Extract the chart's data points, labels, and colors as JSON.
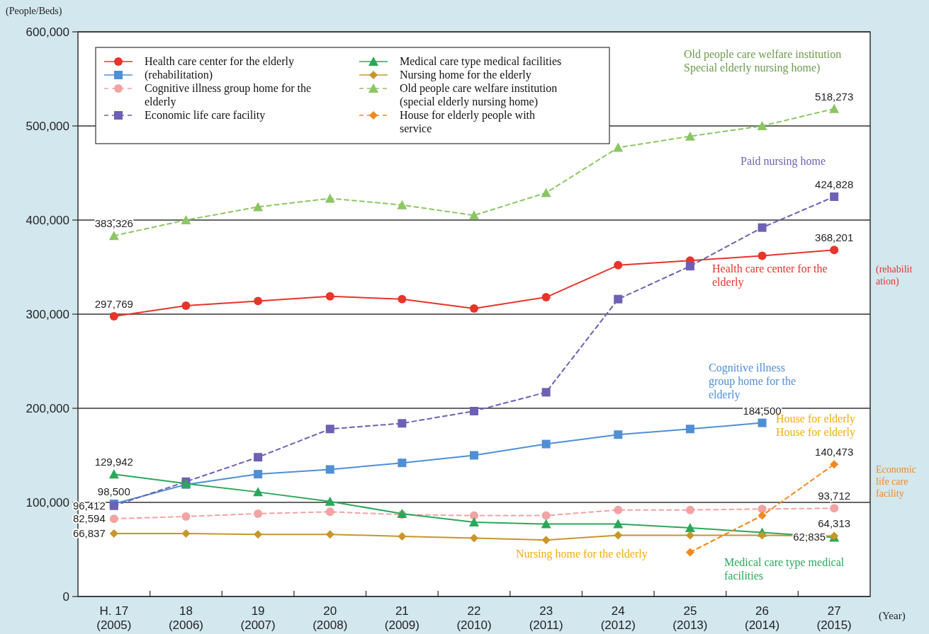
{
  "chart_data": {
    "type": "line",
    "ylabel": "(People/Beds)",
    "xlabel": "(Year)",
    "categories": [
      "H. 17\n(2005)",
      "18\n(2006)",
      "19\n(2007)",
      "20\n(2008)",
      "21\n(2009)",
      "22\n(2010)",
      "23\n(2011)",
      "24\n(2012)",
      "25\n(2013)",
      "26\n(2014)",
      "27\n(2015)"
    ],
    "ylim": [
      0,
      600000
    ],
    "yticks": [
      {
        "value": 0,
        "label": "0"
      },
      {
        "value": 100000,
        "label": "100,000"
      },
      {
        "value": 200000,
        "label": "200,000"
      },
      {
        "value": 300000,
        "label": "300,000"
      },
      {
        "value": 400000,
        "label": "400,000"
      },
      {
        "value": 500000,
        "label": "500,000"
      },
      {
        "value": 600000,
        "label": "600,000"
      }
    ],
    "grid": "y",
    "legend": "top left",
    "series": [
      {
        "name": "Health care center for the elderly",
        "color": "#e8342a",
        "marker": "circle",
        "line_style": "solid",
        "values": [
          297769,
          309000,
          314000,
          319000,
          316000,
          306000,
          318000,
          352000,
          357000,
          362000,
          368201
        ],
        "value_labels": [
          "297,769",
          null,
          null,
          null,
          null,
          null,
          null,
          null,
          null,
          null,
          "368,201"
        ]
      },
      {
        "name": "(rehabilitation)",
        "color": "#4f8fd6",
        "marker": "square",
        "line_style": "solid",
        "values": [
          98500,
          119000,
          130000,
          135000,
          142000,
          150000,
          162000,
          172000,
          178000,
          184500,
          null
        ],
        "value_labels": [
          "98,500",
          null,
          null,
          null,
          null,
          null,
          null,
          null,
          null,
          "184,500",
          null
        ]
      },
      {
        "name": "Cognitive illness group home for the elderly",
        "color": "#f2a3a3",
        "marker": "circle",
        "line_style": "dashed",
        "values": [
          82594,
          85000,
          88000,
          90000,
          87000,
          86000,
          86000,
          92000,
          92000,
          93000,
          93712
        ],
        "value_labels": [
          "82,594",
          null,
          null,
          null,
          null,
          null,
          null,
          null,
          null,
          null,
          "93,712"
        ]
      },
      {
        "name": "Economic life care facility",
        "color": "#6f5fb5",
        "marker": "square",
        "line_style": "dashed",
        "values": [
          96412,
          122000,
          148000,
          178000,
          184000,
          197000,
          217000,
          316000,
          351000,
          392000,
          424828
        ],
        "value_labels": [
          "96,412",
          null,
          null,
          null,
          null,
          null,
          null,
          null,
          null,
          null,
          "424,828"
        ]
      },
      {
        "name": "Medical care type medical facilities",
        "color": "#2aa85a",
        "marker": "triangle",
        "line_style": "solid",
        "values": [
          129942,
          120000,
          111000,
          101000,
          88000,
          79000,
          77000,
          77000,
          73000,
          68000,
          62835
        ],
        "value_labels": [
          "129,942",
          null,
          null,
          null,
          null,
          null,
          null,
          null,
          null,
          null,
          "62,835"
        ]
      },
      {
        "name": "Nursing home for the elderly",
        "color": "#c8962a",
        "marker": "diamond",
        "line_style": "solid",
        "values": [
          66837,
          67000,
          66000,
          66000,
          64000,
          62000,
          60000,
          65000,
          65000,
          65000,
          64313
        ],
        "value_labels": [
          "66,837",
          null,
          null,
          null,
          null,
          null,
          null,
          null,
          null,
          null,
          "64,313"
        ]
      },
      {
        "name": "Old people care welfare institution (special elderly nursing home)",
        "color": "#8cc664",
        "marker": "triangle",
        "line_style": "dashed",
        "values": [
          383326,
          400000,
          414000,
          423000,
          416000,
          405000,
          429000,
          477000,
          489000,
          500000,
          518273
        ],
        "value_labels": [
          "383,326",
          null,
          null,
          null,
          null,
          null,
          null,
          null,
          null,
          null,
          "518,273"
        ]
      },
      {
        "name": "House for elderly people with service",
        "color": "#f08a1e",
        "marker": "diamond",
        "line_style": "dashed",
        "values": [
          null,
          null,
          null,
          null,
          null,
          null,
          null,
          null,
          47000,
          86000,
          140473
        ],
        "value_labels": [
          null,
          null,
          null,
          null,
          null,
          null,
          null,
          null,
          null,
          null,
          "140,473"
        ]
      }
    ],
    "annotations": [
      "Old people care welfare institution\nSpecial elderly nursing home)",
      "Paid nursing home",
      "Health care center for the\nelderly",
      "Cognitive illness\ngroup home for the\nelderly",
      "House for elderly\nHouse for elderly",
      "Nursing home for the elderly",
      "Medical care type medical\nfacilities",
      "(rehabilit\nation)",
      "Economic\nlife care\nfacility"
    ]
  }
}
